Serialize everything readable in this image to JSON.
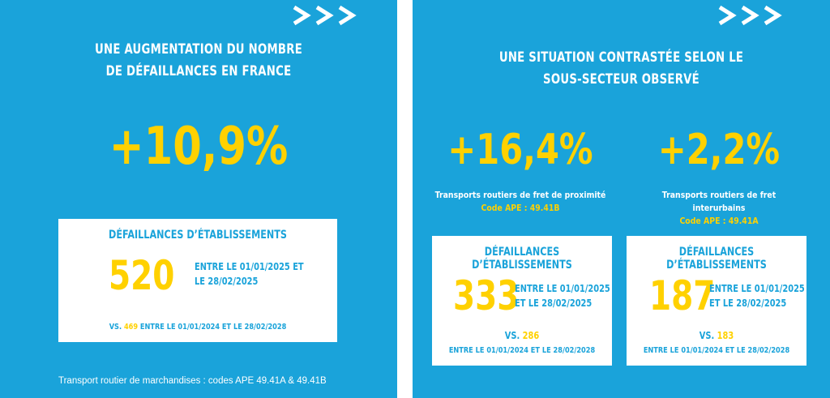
{
  "left": {
    "title_line1": "UNE AUGMENTATION DU NOMBRE",
    "title_line2": "DE DÉFAILLANCES EN FRANCE",
    "percent": "+10,9%",
    "card": {
      "heading": "DÉFAILLANCES D’ÉTABLISSEMENTS",
      "number": "520",
      "period_line1": "ENTRE LE 01/01/2025 ET",
      "period_line2": "LE 28/02/2025",
      "vs_label": "VS.",
      "vs_value": "469",
      "vs_period": "ENTRE LE 01/01/2024 ET LE 28/02/2028"
    },
    "footnote": "Transport routier de marchandises : codes APE 49.41A & 49.41B"
  },
  "right": {
    "title_line1": "UNE SITUATION CONTRASTÉE SELON LE",
    "title_line2": "SOUS-SECTEUR OBSERVÉ",
    "sectors": [
      {
        "percent": "+16,4%",
        "label": "Transports routiers de fret de proximité",
        "code": "Code APE : 49.41B",
        "card": {
          "heading": "DÉFAILLANCES D’ÉTABLISSEMENTS",
          "number": "333",
          "period_line1": "ENTRE LE 01/01/2025",
          "period_line2": "ET LE 28/02/2025",
          "vs_label": "VS.",
          "vs_value": "286",
          "vs_period": "ENTRE LE 01/01/2024 ET LE 28/02/2028"
        }
      },
      {
        "percent": "+2,2%",
        "label": "Transports routiers de fret interurbains",
        "code": "Code APE : 49.41A",
        "card": {
          "heading": "DÉFAILLANCES D’ÉTABLISSEMENTS",
          "number": "187",
          "period_line1": "ENTRE LE 01/01/2025",
          "period_line2": "ET LE 28/02/2025",
          "vs_label": "VS.",
          "vs_value": "183",
          "vs_period": "ENTRE LE 01/01/2024 ET LE 28/02/2028"
        }
      }
    ]
  },
  "icons": {
    "arrows": "triple-chevron-right-icon"
  },
  "colors": {
    "background": "#1aa3da",
    "accent": "#ffd100",
    "card": "#ffffff"
  }
}
